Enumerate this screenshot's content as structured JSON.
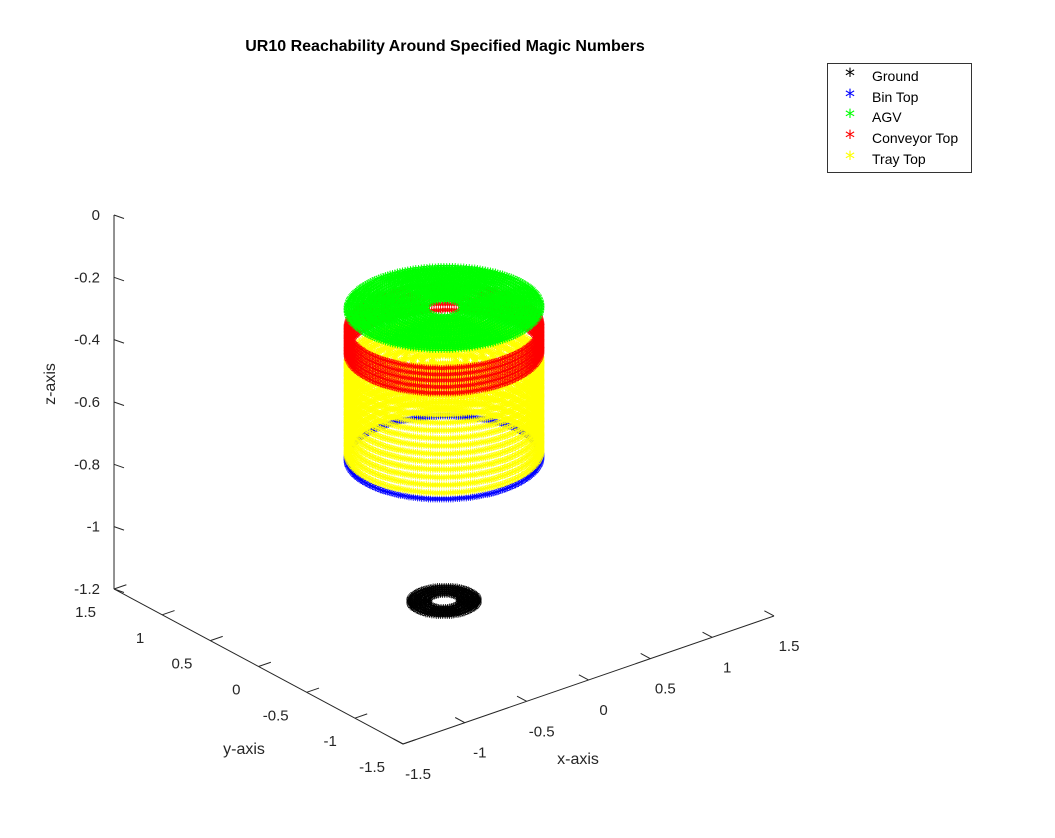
{
  "chart_data": {
    "type": "scatter",
    "projection": "3d",
    "title": "UR10 Reachability Around Specified Magic Numbers",
    "xlabel": "x-axis",
    "ylabel": "y-axis",
    "zlabel": "z-axis",
    "xlim": [
      -1.5,
      1.5
    ],
    "ylim": [
      -1.5,
      1.5
    ],
    "zlim": [
      -1.2,
      0
    ],
    "xticks": [
      "-1.5",
      "-1",
      "-0.5",
      "0",
      "0.5",
      "1",
      "1.5"
    ],
    "yticks": [
      "-1.5",
      "-1",
      "-0.5",
      "0",
      "0.5",
      "1",
      "1.5"
    ],
    "zticks": [
      "-1.2",
      "-1",
      "-0.8",
      "-0.6",
      "-0.4",
      "-0.2",
      "0"
    ],
    "legend_position": "top-right",
    "marker": "*",
    "series": [
      {
        "name": "Ground",
        "color": "#000000",
        "z": -1.2,
        "r_inner": 0.1,
        "r_outer": 0.22
      },
      {
        "name": "Bin Top",
        "color": "#0000ff",
        "z": -0.73,
        "r_inner": 0.0,
        "r_outer": 0.62
      },
      {
        "name": "AGV",
        "color": "#00ff00",
        "z": -0.26,
        "r_inner": 0.07,
        "r_outer": 0.62
      },
      {
        "name": "Conveyor Top",
        "color": "#ff0000",
        "z": -0.35,
        "r_inner": 0.0,
        "r_outer": 0.62
      },
      {
        "name": "Tray Top",
        "color": "#ffff00",
        "z": -0.62,
        "r_inner": 0.0,
        "r_outer": 0.62
      }
    ]
  }
}
